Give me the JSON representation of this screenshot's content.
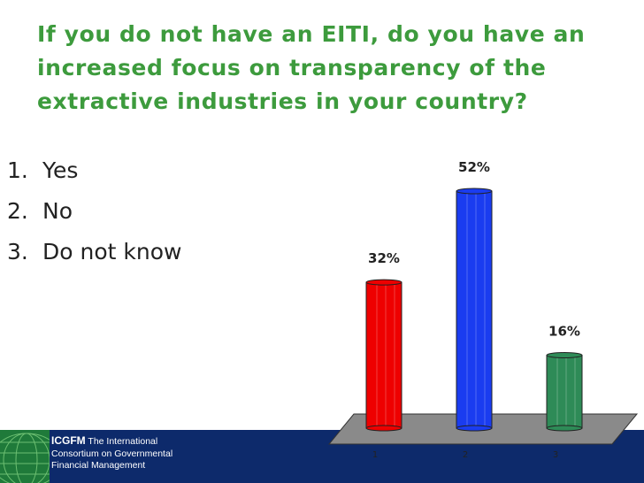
{
  "slide": {
    "title": "If you do not have an EITI, do you have an increased focus on transparency of the extractive industries in your country?",
    "options": [
      {
        "number": "1.",
        "label": "Yes"
      },
      {
        "number": "2.",
        "label": "No"
      },
      {
        "number": "3.",
        "label": "Do not know"
      }
    ]
  },
  "footer": {
    "brand": "ICGFM",
    "org_line1": "The International",
    "org_line2": "Consortium on Governmental",
    "org_line3": "Financial Management"
  },
  "chart_data": {
    "type": "bar",
    "categories": [
      "1",
      "2",
      "3"
    ],
    "values": [
      32,
      52,
      16
    ],
    "value_labels": [
      "32%",
      "52%",
      "16%"
    ],
    "unit": "%",
    "colors": [
      "#ee0000",
      "#1a3cf0",
      "#2e8b57"
    ],
    "floor_color": "#8a8a8a",
    "title": "",
    "xlabel": "",
    "ylabel": "",
    "ylim": [
      0,
      52
    ],
    "grid": false,
    "legend": "none"
  }
}
